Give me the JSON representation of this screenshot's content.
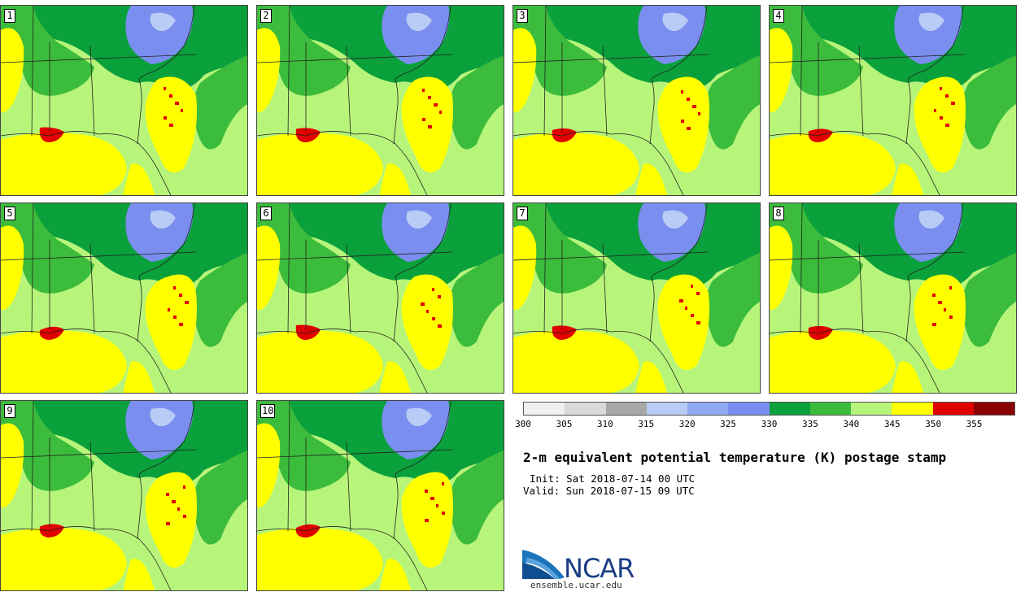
{
  "panels": [
    {
      "label": "1"
    },
    {
      "label": "2"
    },
    {
      "label": "3"
    },
    {
      "label": "4"
    },
    {
      "label": "5"
    },
    {
      "label": "6"
    },
    {
      "label": "7"
    },
    {
      "label": "8"
    },
    {
      "label": "9"
    },
    {
      "label": "10"
    }
  ],
  "colorbar": {
    "ticks": [
      "300",
      "305",
      "310",
      "315",
      "320",
      "325",
      "330",
      "335",
      "340",
      "345",
      "350",
      "355"
    ],
    "colors": [
      "#f0f0f0",
      "#d9d9d9",
      "#a8a8a8",
      "#b8ccf5",
      "#8fa8f2",
      "#7a8ef0",
      "#0aa03c",
      "#3cbc3c",
      "#b7f57a",
      "#ffff00",
      "#e10000",
      "#8a0000"
    ]
  },
  "title": "2-m equivalent potential temperature (K) postage stamp",
  "init": "Init: Sat 2018-07-14 00 UTC",
  "valid": "Valid: Sun 2018-07-15 09 UTC",
  "logo": {
    "text": "NCAR",
    "site": "ensemble.ucar.edu"
  }
}
